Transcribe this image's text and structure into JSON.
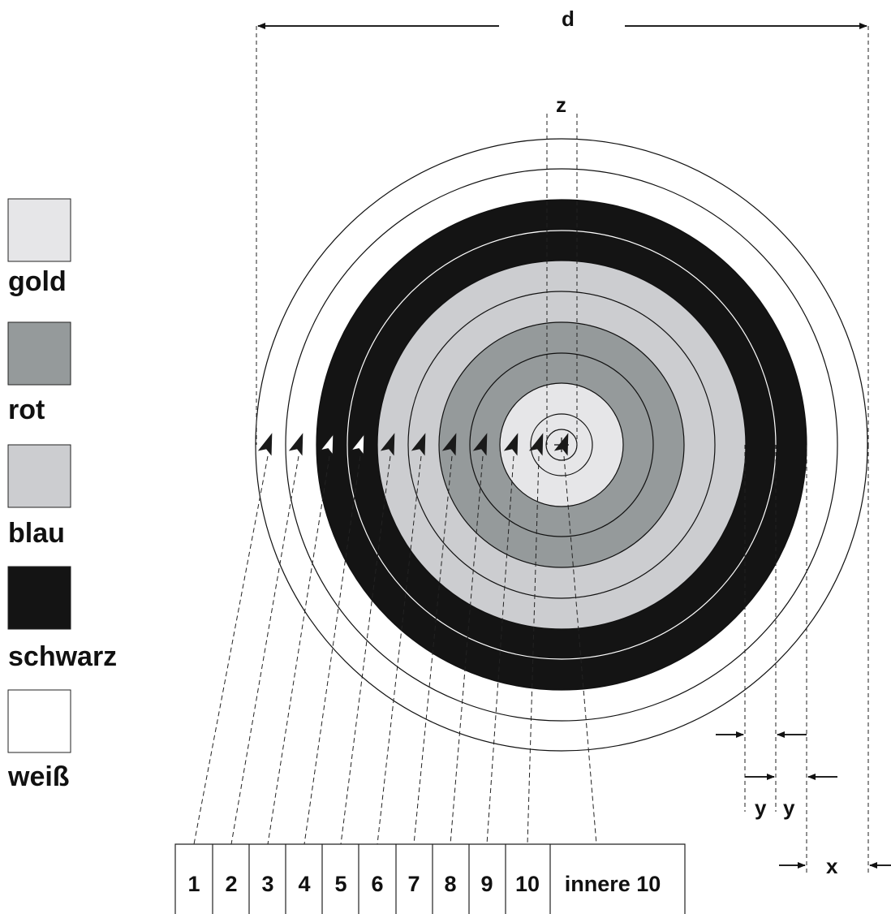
{
  "colors": {
    "gold": "#e6e6e8",
    "rot": "#959a9b",
    "blau": "#cccdd0",
    "schwarz": "#141414",
    "weiss": "#ffffff",
    "line": "#111111"
  },
  "legend": [
    {
      "key": "gold",
      "label": "gold"
    },
    {
      "key": "rot",
      "label": "rot"
    },
    {
      "key": "blau",
      "label": "blau"
    },
    {
      "key": "schwarz",
      "label": "schwarz"
    },
    {
      "key": "weiss",
      "label": "weiß"
    }
  ],
  "dimensions": {
    "d": "d",
    "z": "z",
    "y1": "y",
    "y2": "y",
    "x": "x"
  },
  "scores": [
    "1",
    "2",
    "3",
    "4",
    "5",
    "6",
    "7",
    "8",
    "9",
    "10",
    "innere 10"
  ]
}
